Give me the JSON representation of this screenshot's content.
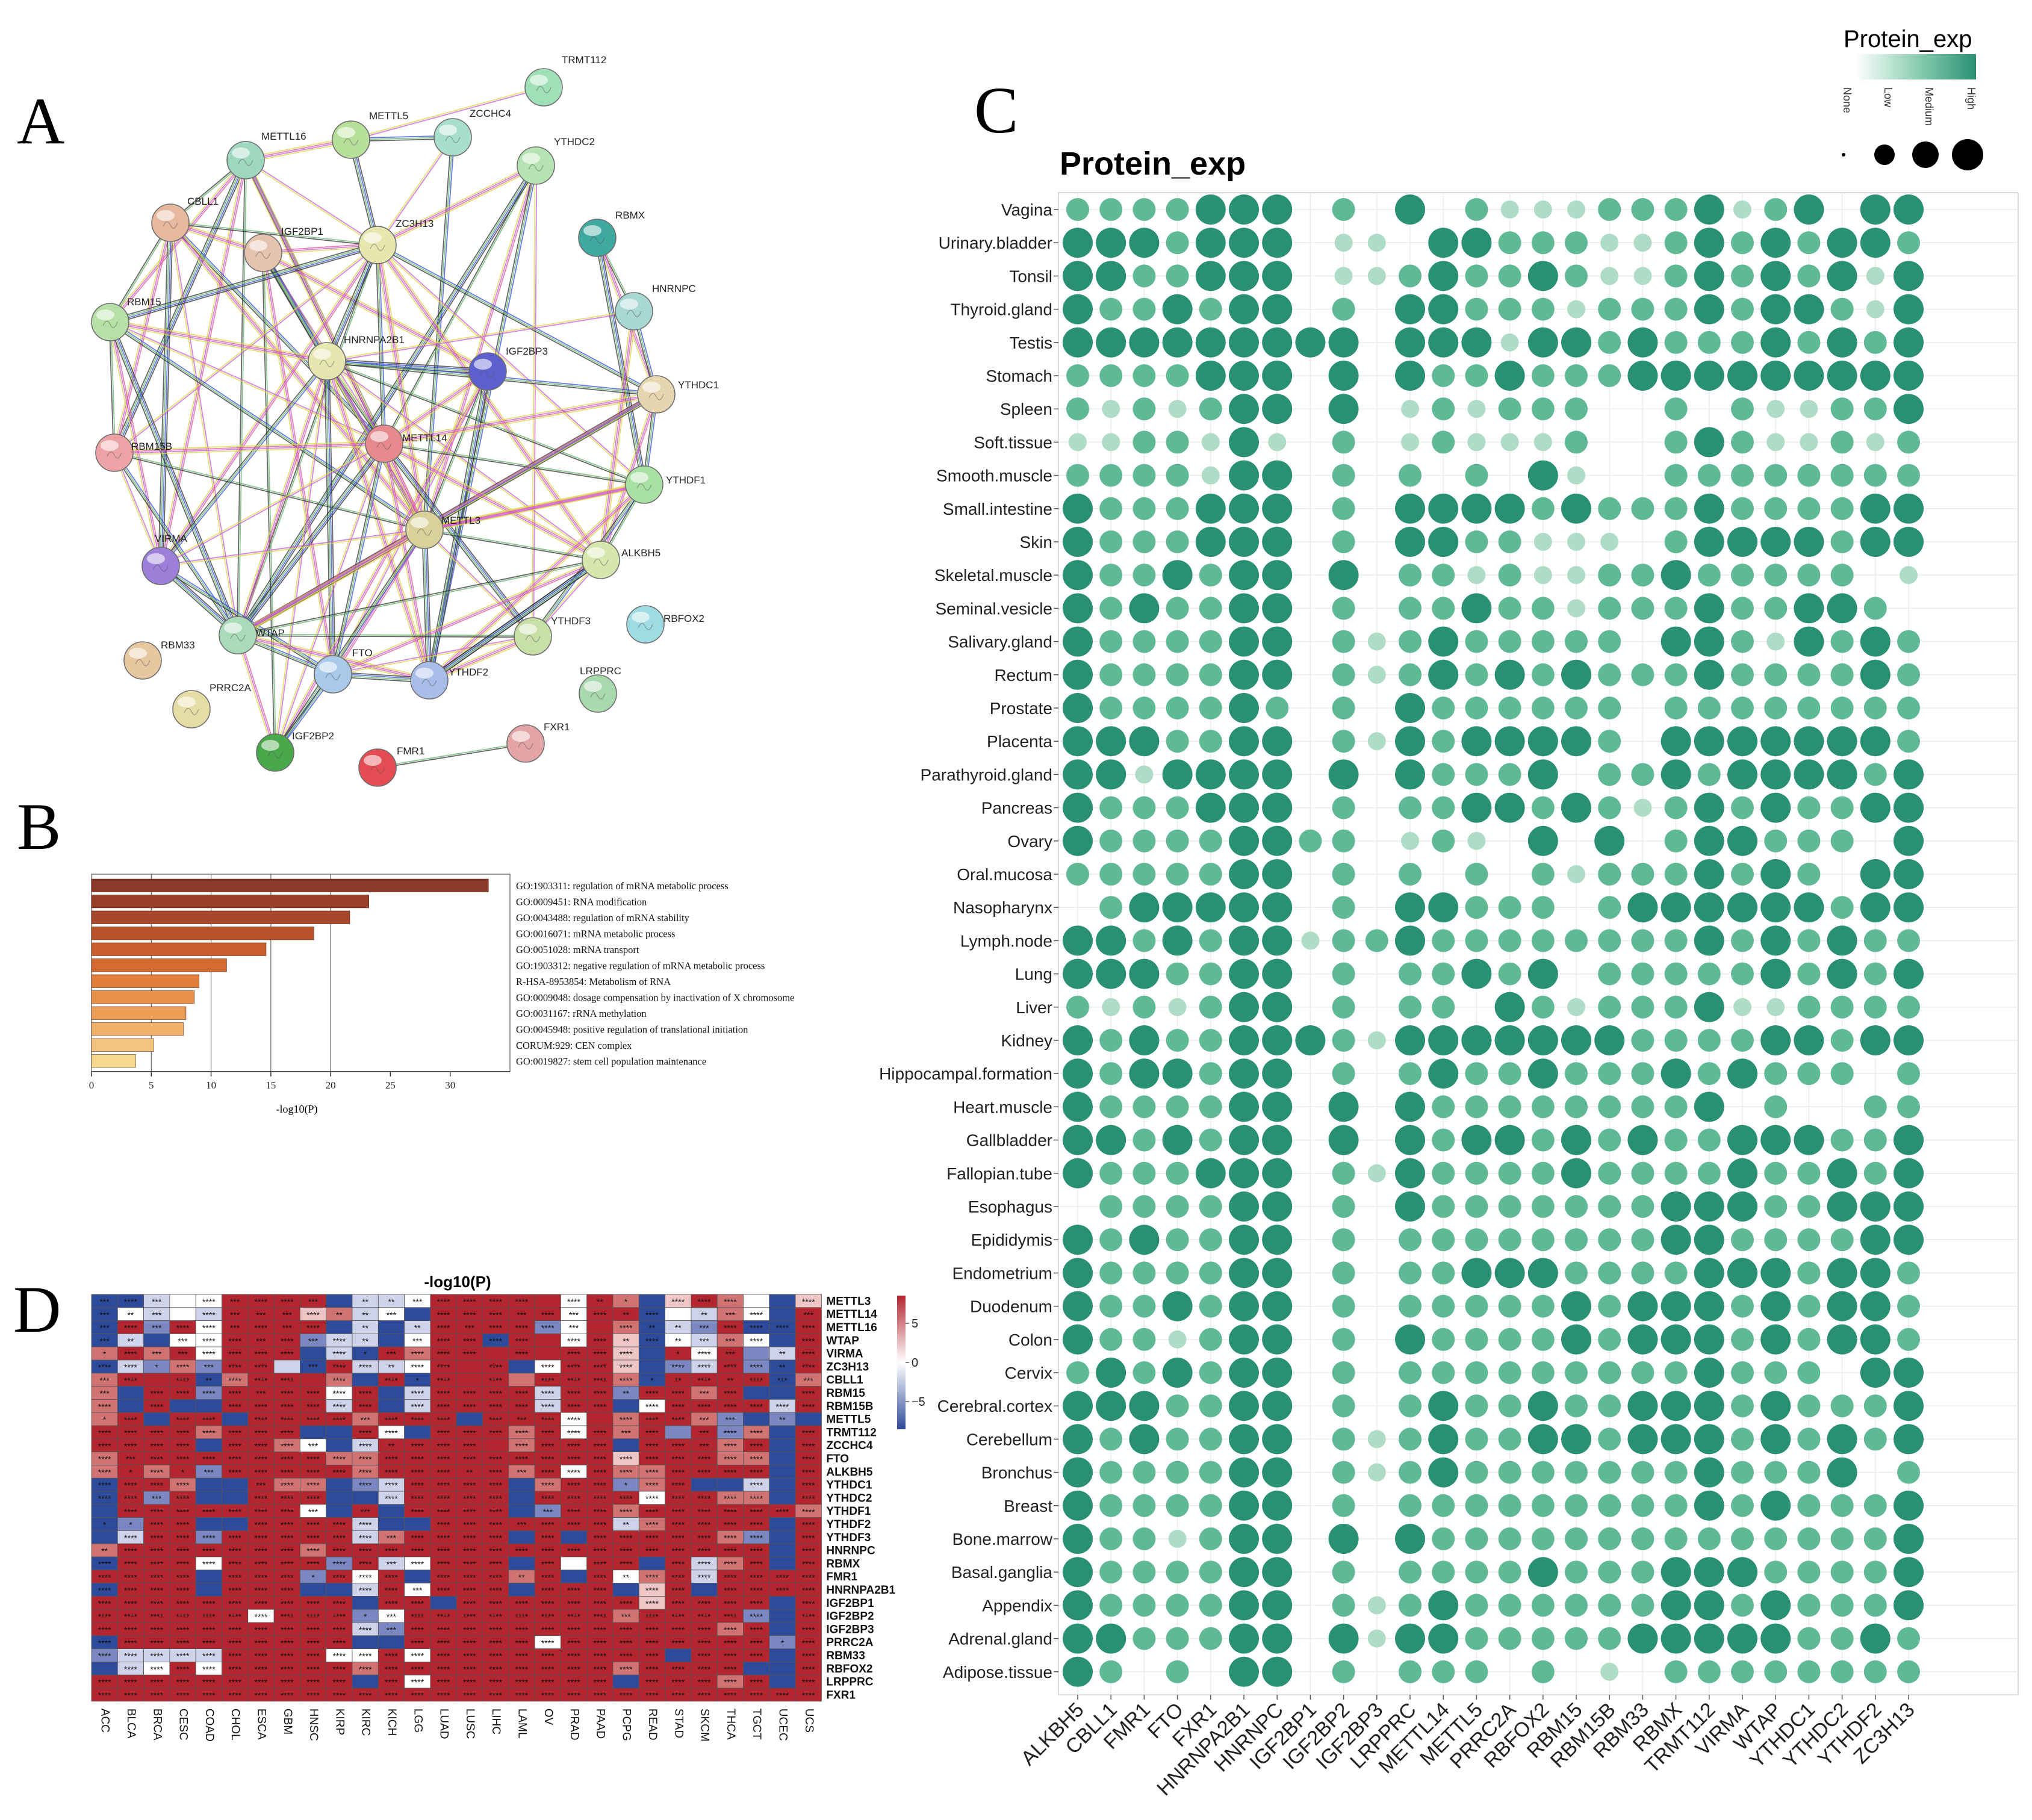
{
  "panels": {
    "A": {
      "letter": "A",
      "nodes": [
        "TRMT112",
        "METTL5",
        "ZCCHC4",
        "METTL16",
        "YTHDC2",
        "CBLL1",
        "IGF2BP1",
        "ZC3H13",
        "RBMX",
        "HNRNPC",
        "RBM15",
        "HNRNPA2B1",
        "IGF2BP3",
        "YTHDC1",
        "RBM15B",
        "METTL14",
        "YTHDF1",
        "VIRMA",
        "METTL3",
        "ALKBH5",
        "RBFOX2",
        "RBM33",
        "WTAP",
        "FTO",
        "YTHDF3",
        "YTHDF2",
        "LRPPRC",
        "PRRC2A",
        "IGF2BP2",
        "FMR1",
        "FXR1"
      ],
      "colors": {
        "TRMT112": "#9fe0b7",
        "METTL5": "#b6e09a",
        "ZCCHC4": "#a8dfcb",
        "METTL16": "#9fd8c0",
        "YTHDC2": "#b6e3b2",
        "CBLL1": "#e6b89e",
        "IGF2BP1": "#e6c3ae",
        "ZC3H13": "#e6e6ae",
        "RBMX": "#3fa9a0",
        "HNRNPC": "#a9d8d4",
        "RBM15": "#b6e0a6",
        "HNRNPA2B1": "#e6e6b0",
        "IGF2BP3": "#5d5fcf",
        "YTHDC1": "#e6d6b0",
        "RBM15B": "#eda3a6",
        "METTL14": "#e68a8e",
        "YTHDF1": "#a9e0a4",
        "VIRMA": "#9c7fd8",
        "METTL3": "#d8d19a",
        "ALKBH5": "#d6e6ac",
        "RBFOX2": "#9fdbe3",
        "RBM33": "#e6c7a0",
        "WTAP": "#a9dbb8",
        "FTO": "#a8c9e8",
        "YTHDF3": "#c8e0a8",
        "YTHDF2": "#a8bde8",
        "LRPPRC": "#a9d8ac",
        "PRRC2A": "#e6dda6",
        "IGF2BP2": "#49a84a",
        "FMR1": "#e34c52",
        "FXR1": "#e3a4a6"
      }
    },
    "B": {
      "letter": "B",
      "xlabel": "-log10(P)",
      "ticks": [
        0,
        5,
        10,
        15,
        20,
        25,
        30
      ],
      "chart_data": {
        "type": "bar",
        "orientation": "horizontal",
        "xlabel": "-log10(P)",
        "xlim": [
          0,
          35
        ],
        "categories": [
          "GO:1903311: regulation of mRNA metabolic process",
          "GO:0009451: RNA modification",
          "GO:0043488: regulation of mRNA stability",
          "GO:0016071: mRNA metabolic process",
          "GO:0051028: mRNA transport",
          "GO:1903312: negative regulation of mRNA metabolic process",
          "R-HSA-8953854: Metabolism of RNA",
          "GO:0009048: dosage compensation by inactivation of X chromosome",
          "GO:0031167: rRNA methylation",
          "GO:0045948: positive regulation of translational initiation",
          "CORUM:929: CEN complex",
          "GO:0019827: stem cell population maintenance"
        ],
        "values": [
          33.2,
          23.2,
          21.6,
          18.6,
          14.6,
          11.3,
          9.0,
          8.6,
          7.9,
          7.7,
          5.2,
          3.7
        ],
        "colors": [
          "#8b3a2a",
          "#98402a",
          "#a6462b",
          "#b9522a",
          "#c85f2d",
          "#d56b31",
          "#e07f3c",
          "#e6904a",
          "#eb9f57",
          "#efb068",
          "#f2c57f",
          "#f4d98f"
        ]
      }
    },
    "C": {
      "letter": "C",
      "legend_title": "Protein_exp",
      "legend_labels": [
        "None",
        "Low",
        "Medium",
        "High"
      ],
      "chart_data": {
        "type": "scatter",
        "subtype": "dot-plot",
        "title": "Protein_exp",
        "level_names": [
          "None",
          "Low",
          "Medium",
          "High"
        ],
        "level_colors": [
          "#ffffff",
          "#aedcc6",
          "#5fb896",
          "#2a9073"
        ],
        "genes": [
          "ALKBH5",
          "CBLL1",
          "FMR1",
          "FTO",
          "FXR1",
          "HNRNPA2B1",
          "HNRNPC",
          "IGF2BP1",
          "IGF2BP2",
          "IGF2BP3",
          "LRPPRC",
          "METTL14",
          "METTL5",
          "PRRC2A",
          "RBFOX2",
          "RBM15",
          "RBM15B",
          "RBM33",
          "RBMX",
          "TRMT112",
          "VIRMA",
          "WTAP",
          "YTHDC1",
          "YTHDC2",
          "YTHDF2",
          "ZC3H13"
        ],
        "tissues": [
          "Vagina",
          "Urinary.bladder",
          "Tonsil",
          "Thyroid.gland",
          "Testis",
          "Stomach",
          "Spleen",
          "Soft.tissue",
          "Smooth.muscle",
          "Small.intestine",
          "Skin",
          "Skeletal.muscle",
          "Seminal.vesicle",
          "Salivary.gland",
          "Rectum",
          "Prostate",
          "Placenta",
          "Parathyroid.gland",
          "Pancreas",
          "Ovary",
          "Oral.mucosa",
          "Nasopharynx",
          "Lymph.node",
          "Lung",
          "Liver",
          "Kidney",
          "Hippocampal.formation",
          "Heart.muscle",
          "Gallbladder",
          "Fallopian.tube",
          "Esophagus",
          "Epididymis",
          "Endometrium",
          "Duodenum",
          "Colon",
          "Cervix",
          "Cerebral.cortex",
          "Cerebellum",
          "Bronchus",
          "Breast",
          "Bone.marrow",
          "Basal.ganglia",
          "Appendix",
          "Adrenal.gland",
          "Adipose.tissue"
        ],
        "levels": [
          "22223330203021112223123033",
          "33323330110332221123232332",
          "33223330112322321123232313",
          "32232330203322212223233213",
          "33333333303331332322232323",
          "22223330303223222333333333",
          "21212330301212220020211223",
          "11221310201211120023211212",
          "22221330202020310022222222",
          "32223330203333232223222233",
          "32223330203322111023333233",
          "32232330302212112232222201",
          "32322330202232212223223320",
          "32222330212322222033213232",
          "32222330212323232223222232",
          "32222320203222222022222222",
          "33322330213233332033333332",
          "33133330303222302232333323",
          "32223330202233232123232233",
          "32222332201210303023322203",
          "22222330202020212223232033",
          "02333330203322202333333233",
          "33232331223222222223232322",
          "33322330202232302222232323",
          "21212330202203212223112222",
          "32322333213333333222233233",
          "32332330202322322232322202",
          "32222330303222222223020022",
          "33232330303233232322333223",
          "32223330213222232222322323",
          "02222330203222222233322333",
          "32322330202222222233222233",
          "32222330202233322223332332",
          "32232330202222232333232332",
          "32212330203222232333232332",
          "23232330202222222223222033",
          "33322330202322322333232223",
          "32322330212322332333232323",
          "32222330212322222223222302",
          "32222330202222222223232223",
          "32212330303222222222222223",
          "32222330202222322233322223",
          "32222330212322222233232223",
          "33222330313322222333332232",
          "32020330202220201022222222"
        ]
      }
    },
    "D": {
      "letter": "D",
      "title": "-log10(P)",
      "legend_ticks": [
        "5",
        "0",
        "−5"
      ],
      "chart_data": {
        "type": "heatmap",
        "title": "-log10(P)",
        "value_range": [
          -8,
          8
        ],
        "level_values": [
          -8,
          -4,
          -1.5,
          0,
          1.5,
          4,
          8
        ],
        "level_colors": [
          "#2e4b9b",
          "#7a87c1",
          "#cfd3ea",
          "#ffffff",
          "#efc6c6",
          "#d27373",
          "#b3252f"
        ],
        "star_codes": {
          "0": "",
          "1": "*",
          "2": "**",
          "3": "***",
          "4": "****"
        },
        "cancers": [
          "ACC",
          "BLCA",
          "BRCA",
          "CESC",
          "COAD",
          "CHOL",
          "ESCA",
          "GBM",
          "HNSC",
          "KIRP",
          "KIRC",
          "KICH",
          "LGG",
          "LUAD",
          "LUSC",
          "LIHC",
          "LAML",
          "OV",
          "PRAD",
          "PAAD",
          "PCPG",
          "READ",
          "STAD",
          "SKCM",
          "THCA",
          "TGCT",
          "UCEC",
          "UCS"
        ],
        "genes": [
          "METTL3",
          "METTL14",
          "METTL16",
          "WTAP",
          "VIRMA",
          "ZC3H13",
          "CBLL1",
          "RBM15",
          "RBM15B",
          "METTL5",
          "TRMT112",
          "ZCCHC4",
          "FTO",
          "ALKBH5",
          "YTHDC1",
          "YTHDC2",
          "YTHDF1",
          "YTHDF2",
          "YTHDF3",
          "HNRNPC",
          "RBMX",
          "FMR1",
          "HNRNPA2B1",
          "IGF2BP1",
          "IGF2BP2",
          "IGF2BP3",
          "PRRC2A",
          "RBM33",
          "RBFOX2",
          "LRPPRC",
          "FXR1"
        ],
        "levels": [
          "0023366660223666663650465304",
          "0323266645230666663660325306",
          "0616366660202666613650216006",
          "0203366612203660663640325306",
          "5656366602065666666640636126",
          "0215166206223666036640126106",
          "5666056665060666566650666605",
          "5066166663602666626616656006",
          "5060066662602666626603666626",
          "5606606666566606663656651010",
          "6666566600630666563656161506",
          "6666066530266666566606665606",
          "5666666665566666666646665506",
          "5656166666566666563655666606",
          "0665006550126666056615600206",
          "0616006660026666066663665506",
          "0666666630606666016656666665",
          "0166006666200666666625666606",
          "0266166666256666060666665106",
          "5666666656666666666666666606",
          "0666366661623666063660625606",
          "6666066616360666560635626666",
          "0666066600263666066604606666",
          "6666666666066066666664666606",
          "6666663666136666666656666106",
          "6666666666216666666666665606",
          "0666666666006666636666666616",
          "1222266663363666666666066606",
          "0236366666566666666656666006",
          "6666666666063666666606665606",
          "6666666666666666666666666666"
        ],
        "stars": [
          "3430434430223444404210444004",
          "3230433342230444343424023403",
          "3434434340202434443042234444",
          "3203443434203444404424233404",
          "1433444404134440404440143024",
          "4414344034424404044440444424",
          "3404244404041404044441242433",
          "3044443444404444444424434004",
          "4040044444404444444404444444",
          "1404404444344404344044433020",
          "4444444400440444444434034404",
          "4444044430424440444404434404",
          "4344444444444444444444444404",
          "4141344444444424344444444404",
          "4444003440444444044414400404",
          "4434004440044444044444444404",
          "0444444430304444034444444444",
          "1144004444400444344424444404",
          "0444444444434444040444444404",
          "2444444444444444444444444404",
          "4444444444434444040440444404",
          "4444044414440444240424444444",
          "4444044400443444044404404444",
          "4444444444044044444444444404",
          "4444444444134444444434444404",
          "4444444444434444444444444404",
          "4444444444004444444444444414",
          "4444444444444444444444044404",
          "0444444444444444444444444004",
          "4444444444044444444404444404",
          "4444444444444444444444444444"
        ]
      }
    }
  }
}
